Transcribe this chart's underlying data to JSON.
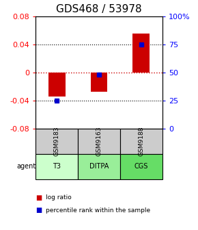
{
  "title": "GDS468 / 53978",
  "samples": [
    "GSM9183",
    "GSM9163",
    "GSM9188"
  ],
  "agents": [
    "T3",
    "DITPA",
    "CGS"
  ],
  "log_ratios": [
    -0.035,
    -0.028,
    0.055
  ],
  "percentiles": [
    25,
    48,
    75
  ],
  "ylim_left": [
    -0.08,
    0.08
  ],
  "ylim_right": [
    0,
    100
  ],
  "yticks_left": [
    -0.08,
    -0.04,
    0,
    0.04,
    0.08
  ],
  "yticks_right": [
    0,
    25,
    50,
    75,
    100
  ],
  "ytick_labels_right": [
    "0",
    "25",
    "50",
    "75",
    "100%"
  ],
  "bar_color": "#cc0000",
  "percentile_color": "#0000cc",
  "grid_color": "#000000",
  "zero_line_color": "#cc0000",
  "dotted_ticks": [
    -0.04,
    0.04
  ],
  "agent_colors": [
    "#ccffcc",
    "#99ee99",
    "#66dd66"
  ],
  "sample_bg": "#cccccc",
  "bar_width": 0.4,
  "title_fontsize": 11,
  "label_fontsize": 8,
  "tick_fontsize": 8
}
